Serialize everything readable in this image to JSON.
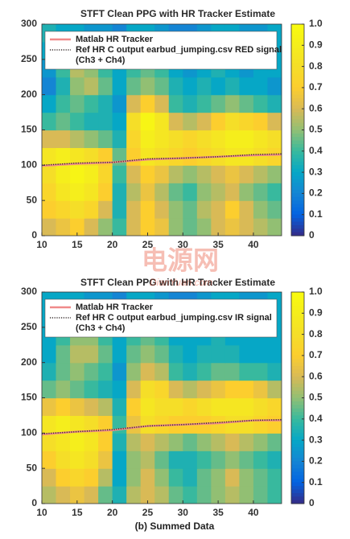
{
  "chart_data": [
    {
      "type": "heatmap",
      "title": "STFT Clean PPG with HR Tracker Estimate",
      "x": [
        11,
        13,
        15,
        17,
        19,
        21,
        23,
        25,
        27,
        29,
        31,
        33,
        35,
        37,
        39,
        41,
        43
      ],
      "y": [
        12.5,
        37.5,
        62.5,
        87.5,
        112.5,
        137.5,
        162.5,
        187.5,
        212.5,
        237.5,
        262.5,
        287.5
      ],
      "z": [
        [
          0.6,
          0.65,
          0.7,
          0.6,
          0.5,
          0.4,
          0.6,
          0.7,
          0.65,
          0.5,
          0.45,
          0.5,
          0.6,
          0.65,
          0.6,
          0.55,
          0.5
        ],
        [
          0.7,
          0.75,
          0.8,
          0.75,
          0.6,
          0.35,
          0.6,
          0.7,
          0.6,
          0.5,
          0.45,
          0.55,
          0.6,
          0.7,
          0.6,
          0.5,
          0.45
        ],
        [
          0.75,
          0.85,
          0.9,
          0.85,
          0.7,
          0.35,
          0.55,
          0.65,
          0.55,
          0.45,
          0.4,
          0.5,
          0.55,
          0.6,
          0.5,
          0.45,
          0.4
        ],
        [
          0.8,
          0.9,
          0.95,
          0.9,
          0.75,
          0.4,
          0.6,
          0.7,
          0.65,
          0.55,
          0.5,
          0.55,
          0.6,
          0.65,
          0.6,
          0.55,
          0.5
        ],
        [
          0.85,
          0.9,
          0.85,
          0.8,
          0.7,
          0.45,
          0.7,
          0.85,
          0.8,
          0.75,
          0.7,
          0.75,
          0.8,
          0.85,
          0.85,
          0.8,
          0.75
        ],
        [
          0.6,
          0.6,
          0.55,
          0.5,
          0.45,
          0.35,
          0.75,
          0.9,
          0.85,
          0.8,
          0.75,
          0.8,
          0.85,
          0.9,
          0.9,
          0.85,
          0.8
        ],
        [
          0.4,
          0.45,
          0.4,
          0.35,
          0.35,
          0.3,
          0.8,
          0.95,
          0.85,
          0.6,
          0.55,
          0.6,
          0.7,
          0.8,
          0.75,
          0.7,
          0.6
        ],
        [
          0.3,
          0.4,
          0.45,
          0.4,
          0.35,
          0.25,
          0.6,
          0.7,
          0.6,
          0.4,
          0.35,
          0.4,
          0.45,
          0.5,
          0.45,
          0.4,
          0.35
        ],
        [
          0.2,
          0.35,
          0.5,
          0.55,
          0.45,
          0.3,
          0.45,
          0.5,
          0.45,
          0.35,
          0.3,
          0.35,
          0.3,
          0.35,
          0.3,
          0.3,
          0.25
        ],
        [
          0.25,
          0.4,
          0.55,
          0.5,
          0.4,
          0.3,
          0.4,
          0.45,
          0.4,
          0.3,
          0.25,
          0.3,
          0.35,
          0.3,
          0.25,
          0.3,
          0.3
        ],
        [
          0.3,
          0.35,
          0.4,
          0.35,
          0.3,
          0.25,
          0.35,
          0.4,
          0.35,
          0.3,
          0.3,
          0.3,
          0.3,
          0.3,
          0.3,
          0.3,
          0.3
        ],
        [
          0.35,
          0.3,
          0.3,
          0.25,
          0.25,
          0.2,
          0.3,
          0.3,
          0.25,
          0.2,
          0.2,
          0.25,
          0.3,
          0.3,
          0.25,
          0.25,
          0.3
        ]
      ],
      "colormap": "parula",
      "clim": [
        0,
        1
      ],
      "cticks": [
        0,
        0.1,
        0.2,
        0.3,
        0.4,
        0.5,
        0.6,
        0.7,
        0.8,
        0.9,
        {
          "value": 1,
          "label": "1.0"
        }
      ],
      "xlim": [
        10,
        44
      ],
      "xticks": [
        10,
        15,
        20,
        25,
        30,
        35,
        40
      ],
      "ylim": [
        0,
        300
      ],
      "yticks": [
        0,
        50,
        100,
        150,
        200,
        250,
        300
      ],
      "legend": "top",
      "series": [
        {
          "name": [
            "Matlab HR Tracker"
          ],
          "color": "#f08a8a",
          "style": "solid",
          "x": [
            10,
            15,
            20,
            25,
            30,
            35,
            40,
            44
          ],
          "values": [
            99,
            102,
            104,
            108,
            110,
            112,
            114,
            115
          ]
        },
        {
          "name": [
            "Ref HR C output earbud_jumping.csv RED signal",
            "(Ch3 + Ch4)"
          ],
          "color": "#3a3030",
          "style": "dotted",
          "x": [
            10,
            15,
            20,
            25,
            30,
            35,
            40,
            44
          ],
          "values": [
            100,
            103,
            104,
            109,
            110,
            112,
            115,
            116
          ]
        }
      ]
    },
    {
      "type": "heatmap",
      "title": "STFT Clean PPG with HR Tracker Estimate",
      "x": [
        11,
        13,
        15,
        17,
        19,
        21,
        23,
        25,
        27,
        29,
        31,
        33,
        35,
        37,
        39,
        41,
        43
      ],
      "y": [
        12.5,
        37.5,
        62.5,
        87.5,
        112.5,
        137.5,
        162.5,
        187.5,
        212.5,
        237.5,
        262.5,
        287.5
      ],
      "z": [
        [
          0.55,
          0.6,
          0.65,
          0.6,
          0.45,
          0.35,
          0.55,
          0.6,
          0.55,
          0.45,
          0.4,
          0.45,
          0.5,
          0.55,
          0.5,
          0.45,
          0.4
        ],
        [
          0.6,
          0.7,
          0.75,
          0.7,
          0.55,
          0.3,
          0.5,
          0.6,
          0.5,
          0.4,
          0.35,
          0.45,
          0.5,
          0.6,
          0.5,
          0.45,
          0.4
        ],
        [
          0.7,
          0.8,
          0.85,
          0.8,
          0.65,
          0.3,
          0.5,
          0.55,
          0.45,
          0.35,
          0.35,
          0.4,
          0.45,
          0.5,
          0.45,
          0.4,
          0.35
        ],
        [
          0.8,
          0.85,
          0.9,
          0.85,
          0.7,
          0.35,
          0.55,
          0.6,
          0.55,
          0.5,
          0.45,
          0.5,
          0.55,
          0.6,
          0.55,
          0.5,
          0.45
        ],
        [
          0.85,
          0.9,
          0.85,
          0.8,
          0.7,
          0.4,
          0.65,
          0.8,
          0.75,
          0.7,
          0.7,
          0.7,
          0.75,
          0.8,
          0.8,
          0.75,
          0.7
        ],
        [
          0.65,
          0.7,
          0.65,
          0.6,
          0.55,
          0.35,
          0.7,
          0.85,
          0.8,
          0.8,
          0.75,
          0.8,
          0.85,
          0.85,
          0.85,
          0.8,
          0.75
        ],
        [
          0.45,
          0.5,
          0.45,
          0.4,
          0.35,
          0.3,
          0.6,
          0.8,
          0.75,
          0.6,
          0.55,
          0.6,
          0.65,
          0.7,
          0.7,
          0.65,
          0.55
        ],
        [
          0.35,
          0.45,
          0.5,
          0.45,
          0.4,
          0.25,
          0.5,
          0.6,
          0.55,
          0.4,
          0.35,
          0.4,
          0.45,
          0.45,
          0.4,
          0.4,
          0.35
        ],
        [
          0.3,
          0.45,
          0.55,
          0.55,
          0.45,
          0.3,
          0.45,
          0.5,
          0.45,
          0.35,
          0.3,
          0.35,
          0.35,
          0.35,
          0.3,
          0.3,
          0.3
        ],
        [
          0.3,
          0.4,
          0.5,
          0.5,
          0.4,
          0.3,
          0.4,
          0.45,
          0.4,
          0.3,
          0.3,
          0.3,
          0.35,
          0.3,
          0.3,
          0.3,
          0.3
        ],
        [
          0.3,
          0.35,
          0.4,
          0.35,
          0.3,
          0.25,
          0.35,
          0.4,
          0.35,
          0.3,
          0.3,
          0.3,
          0.3,
          0.3,
          0.3,
          0.3,
          0.3
        ],
        [
          0.3,
          0.3,
          0.3,
          0.25,
          0.25,
          0.2,
          0.3,
          0.3,
          0.25,
          0.2,
          0.2,
          0.25,
          0.3,
          0.3,
          0.25,
          0.25,
          0.3
        ]
      ],
      "colormap": "parula",
      "clim": [
        0,
        1
      ],
      "cticks": [
        0,
        0.1,
        0.2,
        0.3,
        0.4,
        0.5,
        0.6,
        0.7,
        0.8,
        0.9,
        {
          "value": 1,
          "label": "1.0"
        }
      ],
      "xlim": [
        10,
        44
      ],
      "xticks": [
        10,
        15,
        20,
        25,
        30,
        35,
        40
      ],
      "ylim": [
        0,
        300
      ],
      "yticks": [
        0,
        50,
        100,
        150,
        200,
        250,
        300
      ],
      "legend": "top",
      "series": [
        {
          "name": [
            "Matlab HR Tracker"
          ],
          "color": "#f08a8a",
          "style": "solid",
          "x": [
            10,
            15,
            20,
            25,
            30,
            35,
            40,
            44
          ],
          "values": [
            98,
            102,
            104,
            110,
            112,
            114,
            118,
            118
          ]
        },
        {
          "name": [
            "Ref HR C output earbud_jumping.csv IR signal",
            "(Ch3 + Ch4)"
          ],
          "color": "#3a3030",
          "style": "dotted",
          "x": [
            10,
            15,
            20,
            25,
            30,
            35,
            40,
            44
          ],
          "values": [
            99,
            102,
            105,
            110,
            112,
            115,
            118,
            119
          ]
        }
      ]
    }
  ],
  "caption": "(b) Summed Data",
  "watermark": {
    "text": "电源网",
    "url": "DianYuan.com"
  }
}
